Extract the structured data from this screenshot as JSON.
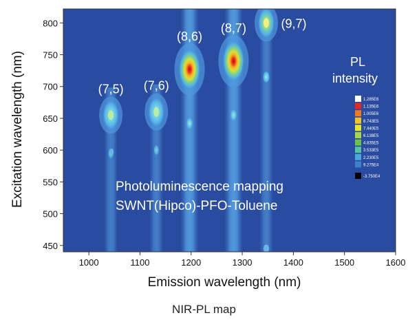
{
  "chart_data": {
    "type": "heatmap",
    "title": "",
    "xlabel": "Emission wavelength (nm)",
    "ylabel": "Excitation wavelength (nm)",
    "xlim": [
      950,
      1600
    ],
    "ylim": [
      440,
      822
    ],
    "xticks": [
      1000,
      1100,
      1200,
      1300,
      1400,
      1500,
      1600
    ],
    "yticks": [
      450,
      500,
      550,
      600,
      650,
      700,
      750,
      800
    ],
    "grid": false,
    "background_color": "#2a4ca0",
    "peaks": [
      {
        "label": "(7,5)",
        "x": 1043,
        "y": 655,
        "intensity": 0.42
      },
      {
        "label": "(7,6)",
        "x": 1132,
        "y": 660,
        "intensity": 0.48
      },
      {
        "label": "(8,6)",
        "x": 1197,
        "y": 727,
        "intensity": 1.0
      },
      {
        "label": "(8,7)",
        "x": 1283,
        "y": 740,
        "intensity": 0.95
      },
      {
        "label": "(9,7)",
        "x": 1347,
        "y": 800,
        "intensity": 0.68
      }
    ],
    "annotation_lines": [
      "Photoluminescence mapping",
      "SWNT(Hipco)-PFO-Toluene"
    ],
    "legend": {
      "title_lines": [
        "PL",
        "intensity"
      ],
      "placement": "right",
      "levels": [
        "1.285E6",
        "1.135E6",
        "1.005E6",
        "8.743E5",
        "7.440E5",
        "6.138E5",
        "4.835E5",
        "3.533E5",
        "2.230E5",
        "9.275E4",
        "-3.750E4"
      ],
      "colors": [
        "#ffffff",
        "#e8281e",
        "#f07a1e",
        "#f5c323",
        "#e8e62a",
        "#a8d84a",
        "#6cc24a",
        "#55c2a0",
        "#4aa8d8",
        "#3f7fd0",
        "#000000"
      ]
    }
  },
  "caption": "NIR-PL map"
}
